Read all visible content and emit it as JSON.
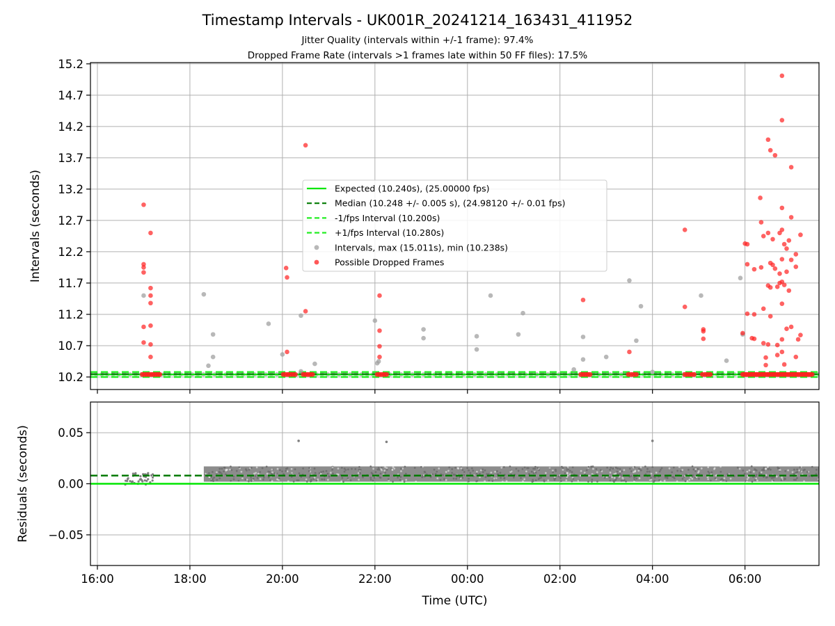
{
  "title": "Timestamp Intervals - UK001R_20241214_163431_411952",
  "subtitle_1": "Jitter Quality (intervals within +/-1 frame): 97.4%",
  "subtitle_2": "Dropped Frame Rate (intervals >1 frames late within 50 FF files): 17.5%",
  "colors": {
    "expected": "#00e600",
    "median": "#007a00",
    "fps_band": "#22ee22",
    "intervals": "#a0a0a0",
    "dropped": "#ff2020",
    "residuals": "#808080"
  },
  "chart_data": [
    {
      "type": "scatter",
      "panel": "intervals",
      "xlabel": "",
      "ylabel": "Intervals (seconds)",
      "x_unit": "hours since 16:00 UTC on the first day shown",
      "xlim": [
        -0.15,
        15.6
      ],
      "x_ticks": [
        0,
        2,
        4,
        6,
        8,
        10,
        12,
        14
      ],
      "x_ticklabels": [
        "16:00",
        "18:00",
        "20:00",
        "22:00",
        "00:00",
        "02:00",
        "04:00",
        "06:00"
      ],
      "ylim": [
        10.0,
        15.22
      ],
      "y_ticks": [
        10.2,
        10.7,
        11.2,
        11.7,
        12.2,
        12.7,
        13.2,
        13.7,
        14.2,
        14.7,
        15.2
      ],
      "y_ticklabels": [
        "10.2",
        "10.7",
        "11.2",
        "11.7",
        "12.2",
        "12.7",
        "13.2",
        "13.7",
        "14.2",
        "14.7",
        "15.2"
      ],
      "grid": true,
      "legend_position": "center",
      "lines": [
        {
          "name": "Expected (10.240s), (25.00000 fps)",
          "y": 10.24,
          "style": "solid",
          "color_key": "expected"
        },
        {
          "name": "Median (10.248 +/- 0.005 s), (24.98120 +/- 0.01 fps)",
          "y": 10.248,
          "style": "dashed",
          "color_key": "median"
        },
        {
          "name": "-1/fps Interval (10.200s)",
          "y": 10.2,
          "style": "dashed",
          "color_key": "fps_band"
        },
        {
          "name": "+1/fps Interval (10.280s)",
          "y": 10.28,
          "style": "dashed",
          "color_key": "fps_band"
        }
      ],
      "series": [
        {
          "name": "Intervals, max (15.011s), min (10.238s)",
          "color_key": "intervals",
          "points": [
            [
              1.0,
              11.5
            ],
            [
              2.3,
              11.52
            ],
            [
              2.4,
              10.38
            ],
            [
              2.5,
              10.88
            ],
            [
              2.5,
              10.52
            ],
            [
              3.7,
              11.05
            ],
            [
              4.0,
              10.56
            ],
            [
              4.4,
              10.29
            ],
            [
              4.4,
              11.18
            ],
            [
              4.7,
              10.41
            ],
            [
              6.0,
              11.1
            ],
            [
              6.05,
              10.42
            ],
            [
              6.08,
              10.45
            ],
            [
              7.05,
              10.96
            ],
            [
              7.05,
              10.82
            ],
            [
              8.2,
              10.85
            ],
            [
              8.2,
              10.64
            ],
            [
              8.5,
              11.5
            ],
            [
              9.1,
              10.88
            ],
            [
              9.2,
              11.22
            ],
            [
              10.3,
              10.32
            ],
            [
              10.5,
              10.84
            ],
            [
              10.5,
              10.48
            ],
            [
              11.0,
              10.52
            ],
            [
              11.5,
              11.74
            ],
            [
              11.65,
              10.78
            ],
            [
              11.75,
              11.33
            ],
            [
              12.0,
              10.28
            ],
            [
              13.05,
              11.5
            ],
            [
              13.6,
              10.46
            ],
            [
              13.95,
              10.88
            ],
            [
              13.9,
              11.78
            ]
          ]
        },
        {
          "name": "Possible Dropped Frames",
          "color_key": "dropped",
          "points": [
            [
              1.0,
              12.95
            ],
            [
              1.0,
              12.0
            ],
            [
              1.0,
              11.95
            ],
            [
              1.0,
              11.87
            ],
            [
              1.0,
              11.0
            ],
            [
              1.0,
              10.75
            ],
            [
              1.15,
              12.5
            ],
            [
              1.15,
              11.62
            ],
            [
              1.15,
              11.5
            ],
            [
              1.15,
              11.38
            ],
            [
              1.15,
              11.02
            ],
            [
              1.15,
              10.72
            ],
            [
              1.15,
              10.52
            ],
            [
              4.08,
              11.94
            ],
            [
              4.1,
              11.79
            ],
            [
              4.1,
              10.6
            ],
            [
              4.5,
              13.9
            ],
            [
              4.5,
              11.25
            ],
            [
              6.1,
              11.5
            ],
            [
              6.1,
              10.94
            ],
            [
              6.1,
              10.69
            ],
            [
              6.1,
              10.52
            ],
            [
              10.5,
              11.43
            ],
            [
              11.5,
              10.6
            ],
            [
              12.7,
              12.55
            ],
            [
              12.7,
              11.32
            ],
            [
              13.1,
              10.96
            ],
            [
              13.1,
              10.93
            ],
            [
              13.1,
              10.81
            ],
            [
              13.95,
              10.9
            ],
            [
              14.0,
              12.33
            ],
            [
              14.05,
              12.32
            ],
            [
              14.05,
              12.0
            ],
            [
              14.05,
              11.21
            ],
            [
              14.15,
              10.82
            ],
            [
              14.2,
              11.92
            ],
            [
              14.2,
              11.2
            ],
            [
              14.2,
              10.81
            ],
            [
              14.33,
              13.06
            ],
            [
              14.35,
              12.67
            ],
            [
              14.35,
              11.95
            ],
            [
              14.4,
              12.45
            ],
            [
              14.4,
              11.29
            ],
            [
              14.4,
              10.74
            ],
            [
              14.45,
              10.51
            ],
            [
              14.45,
              10.39
            ],
            [
              14.5,
              13.99
            ],
            [
              14.5,
              12.5
            ],
            [
              14.5,
              11.66
            ],
            [
              14.5,
              10.72
            ],
            [
              14.55,
              13.82
            ],
            [
              14.55,
              12.02
            ],
            [
              14.55,
              11.63
            ],
            [
              14.55,
              11.17
            ],
            [
              14.6,
              12.4
            ],
            [
              14.6,
              11.99
            ],
            [
              14.65,
              13.74
            ],
            [
              14.65,
              11.93
            ],
            [
              14.7,
              11.64
            ],
            [
              14.7,
              10.71
            ],
            [
              14.7,
              10.55
            ],
            [
              14.75,
              12.5
            ],
            [
              14.75,
              11.85
            ],
            [
              14.75,
              11.7
            ],
            [
              14.8,
              15.01
            ],
            [
              14.8,
              14.3
            ],
            [
              14.8,
              12.9
            ],
            [
              14.8,
              12.55
            ],
            [
              14.8,
              12.08
            ],
            [
              14.8,
              11.72
            ],
            [
              14.8,
              11.37
            ],
            [
              14.8,
              10.8
            ],
            [
              14.8,
              10.6
            ],
            [
              14.85,
              12.32
            ],
            [
              14.85,
              11.67
            ],
            [
              14.85,
              10.4
            ],
            [
              14.9,
              12.25
            ],
            [
              14.9,
              11.88
            ],
            [
              14.9,
              10.97
            ],
            [
              14.95,
              12.38
            ],
            [
              14.95,
              11.58
            ],
            [
              15.0,
              13.55
            ],
            [
              15.0,
              12.75
            ],
            [
              15.0,
              12.07
            ],
            [
              15.0,
              11.0
            ],
            [
              15.1,
              12.16
            ],
            [
              15.1,
              11.96
            ],
            [
              15.1,
              10.52
            ],
            [
              15.15,
              10.8
            ],
            [
              15.2,
              10.87
            ],
            [
              15.2,
              12.47
            ]
          ]
        },
        {
          "name": "Possible Dropped Frames (baseline clusters)",
          "color_key": "dropped",
          "clusters_x_range": [
            [
              0.97,
              1.35
            ],
            [
              4.02,
              4.28
            ],
            [
              4.45,
              4.65
            ],
            [
              6.05,
              6.25
            ],
            [
              10.45,
              10.65
            ],
            [
              11.48,
              11.65
            ],
            [
              12.7,
              12.9
            ],
            [
              13.08,
              13.25
            ],
            [
              13.95,
              15.45
            ]
          ],
          "y": 10.24
        }
      ]
    },
    {
      "type": "scatter",
      "panel": "residuals",
      "xlabel": "Time (UTC)",
      "ylabel": "Residuals (seconds)",
      "x_unit": "hours since 16:00 UTC on the first day shown",
      "xlim": [
        -0.15,
        15.6
      ],
      "x_ticks": [
        0,
        2,
        4,
        6,
        8,
        10,
        12,
        14
      ],
      "x_ticklabels": [
        "16:00",
        "18:00",
        "20:00",
        "22:00",
        "00:00",
        "02:00",
        "04:00",
        "06:00"
      ],
      "ylim": [
        -0.08,
        0.08
      ],
      "y_ticks": [
        0.05,
        0.0,
        -0.05
      ],
      "y_ticklabels": [
        "0.05",
        "0.00",
        "−0.05"
      ],
      "grid": true,
      "lines": [
        {
          "name": "zero",
          "y": 0.0,
          "style": "solid",
          "color_key": "expected"
        },
        {
          "name": "median offset",
          "y": 0.008,
          "style": "dashed",
          "color_key": "median"
        }
      ],
      "series": [
        {
          "name": "residuals",
          "color_key": "residuals",
          "dense_band": {
            "x_range": [
              2.3,
              15.6
            ],
            "y_range": [
              0.002,
              0.017
            ]
          },
          "sparse_x_range": [
            0.6,
            1.2
          ],
          "sparse_y_range": [
            -0.001,
            0.02
          ],
          "outliers": [
            [
              4.35,
              0.042
            ],
            [
              6.25,
              0.041
            ],
            [
              12.0,
              0.042
            ]
          ]
        }
      ]
    }
  ]
}
